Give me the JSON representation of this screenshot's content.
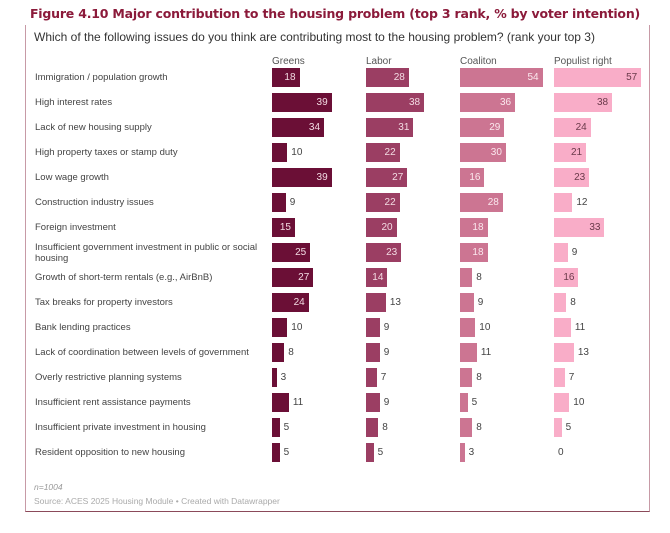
{
  "chart_data": {
    "type": "bar",
    "orientation": "horizontal",
    "layout": "small-multiples",
    "title": "Figure 4.10 Major contribution to the housing problem (top 3 rank, % by voter intention)",
    "subtitle": "Which of the following issues do you think are contributing most to the housing problem? (rank your top 3)",
    "xlabel": "",
    "ylabel": "",
    "xlim": [
      0,
      60
    ],
    "grid": false,
    "categories": [
      "Immigration / population growth",
      "High interest rates",
      "Lack of new housing supply",
      "High property taxes or stamp duty",
      "Low wage growth",
      "Construction industry issues",
      "Foreign investment",
      "Insufficient government investment in public or social housing",
      "Growth of short-term rentals (e.g., AirBnB)",
      "Tax breaks for property investors",
      "Bank lending practices",
      "Lack of coordination between levels of government",
      "Overly restrictive planning systems",
      "Insufficient rent assistance payments",
      "Insufficient private investment in housing",
      "Resident opposition to new housing"
    ],
    "series": [
      {
        "name": "Greens",
        "color": "#6b0f36",
        "label_color_inside": "#f3dbe3",
        "values": [
          18,
          39,
          34,
          10,
          39,
          9,
          15,
          25,
          27,
          24,
          10,
          8,
          3,
          11,
          5,
          5
        ]
      },
      {
        "name": "Labor",
        "color": "#9b3e63",
        "label_color_inside": "#f3dbe3",
        "values": [
          28,
          38,
          31,
          22,
          27,
          22,
          20,
          23,
          14,
          13,
          9,
          9,
          7,
          9,
          8,
          5
        ]
      },
      {
        "name": "Coaliton",
        "color": "#cc7592",
        "label_color_inside": "#fbe8ee",
        "values": [
          54,
          36,
          29,
          30,
          16,
          28,
          18,
          18,
          8,
          9,
          10,
          11,
          8,
          5,
          8,
          3
        ]
      },
      {
        "name": "Populist right",
        "color": "#f9adc8",
        "label_color_inside": "#6a3a4a",
        "values": [
          57,
          38,
          24,
          21,
          23,
          12,
          33,
          9,
          16,
          8,
          11,
          13,
          7,
          10,
          5,
          0
        ]
      }
    ],
    "note": "n=1004",
    "source": "Source: ACES 2025 Housing Module • Created with Datawrapper"
  }
}
